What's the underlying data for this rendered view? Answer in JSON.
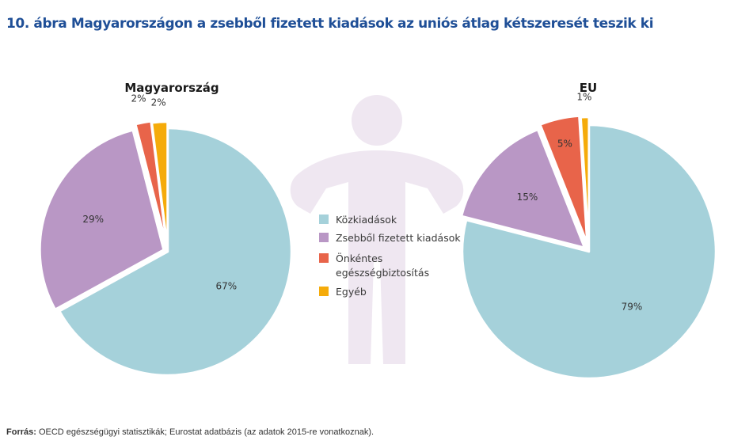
{
  "title": "10. ábra Magyarországon a zsebből fizetett kiadások az uniós átlag kétszeresét teszik ki",
  "source": {
    "label": "Forrás:",
    "text": " OECD egészségügyi statisztikák; Eurostat adatbázis (az adatok 2015-re vonatkoznak)."
  },
  "colors": {
    "Közkiadások": "#a5d1da",
    "Zsebből fizetett kiadások": "#b997c5",
    "Önkéntes egészségbiztosítás": "#e8644a",
    "Egyéb": "#f5ab0a",
    "figure": "#efe7f1",
    "title": "#1f4f97"
  },
  "legend": [
    {
      "lines": [
        "Közkiadások"
      ]
    },
    {
      "lines": [
        "Zsebből fizetett kiadások"
      ]
    },
    {
      "lines": [
        "Önkéntes",
        "egészségbiztosítás"
      ]
    },
    {
      "lines": [
        "Egyéb"
      ]
    }
  ],
  "chart_data": [
    {
      "type": "pie",
      "title": "Magyarország",
      "slices": [
        {
          "category": "Közkiadások",
          "value": 67,
          "label": "67%"
        },
        {
          "category": "Zsebből fizetett kiadások",
          "value": 29,
          "label": "29%"
        },
        {
          "category": "Önkéntes egészségbiztosítás",
          "value": 2,
          "label": "2%"
        },
        {
          "category": "Egyéb",
          "value": 2,
          "label": "2%"
        }
      ]
    },
    {
      "type": "pie",
      "title": "EU",
      "slices": [
        {
          "category": "Közkiadások",
          "value": 79,
          "label": "79%"
        },
        {
          "category": "Zsebből fizetett kiadások",
          "value": 15,
          "label": "15%"
        },
        {
          "category": "Önkéntes egészségbiztosítás",
          "value": 5,
          "label": "5%"
        },
        {
          "category": "Egyéb",
          "value": 1,
          "label": "1%"
        }
      ]
    }
  ]
}
